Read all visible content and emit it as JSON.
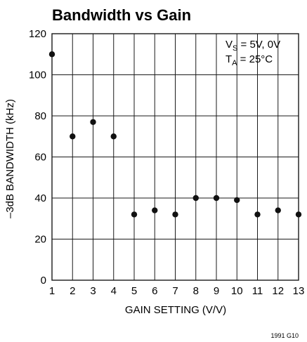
{
  "chart_data": {
    "type": "scatter",
    "title": "Bandwidth vs Gain",
    "xlabel": "GAIN SETTING (V/V)",
    "ylabel": "–3dB BANDWIDTH (kHz)",
    "xlim": [
      1,
      13
    ],
    "ylim": [
      0,
      120
    ],
    "xticks": [
      1,
      2,
      3,
      4,
      5,
      6,
      7,
      8,
      9,
      10,
      11,
      12,
      13
    ],
    "yticks": [
      0,
      20,
      40,
      60,
      80,
      100,
      120
    ],
    "grid": true,
    "x": [
      1,
      2,
      3,
      4,
      5,
      6,
      7,
      8,
      9,
      10,
      11,
      12,
      13
    ],
    "y": [
      110,
      70,
      77,
      70,
      32,
      34,
      32,
      40,
      40,
      39,
      32,
      34,
      32
    ],
    "annotation": {
      "line1": {
        "main": "V",
        "sub": "S",
        "rest": " = 5V, 0V"
      },
      "line2": {
        "main": "T",
        "sub": "A",
        "rest": " = 25°C"
      }
    },
    "figure_id": "1991 G10"
  },
  "colors": {
    "grid": "#1a1a1a",
    "marker": "#111111",
    "text": "#111111"
  }
}
